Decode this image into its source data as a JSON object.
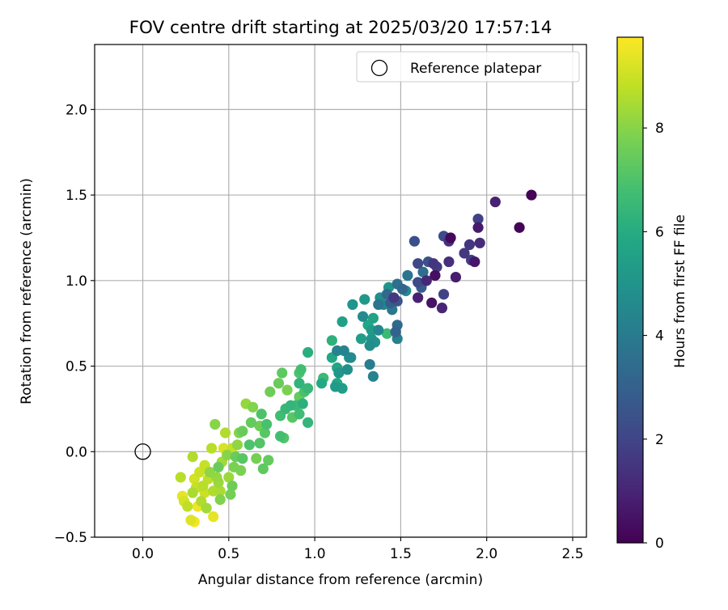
{
  "chart_data": {
    "type": "scatter",
    "title": "FOV centre drift starting at 2025/03/20 17:57:14",
    "xlabel": "Angular distance from reference (arcmin)",
    "ylabel": "Rotation from reference (arcmin)",
    "xlim": [
      -0.28,
      2.58
    ],
    "ylim": [
      -0.5,
      2.38
    ],
    "xticks": [
      0.0,
      0.5,
      1.0,
      1.5,
      2.0,
      2.5
    ],
    "xtick_labels": [
      "0.0",
      "0.5",
      "1.0",
      "1.5",
      "2.0",
      "2.5"
    ],
    "yticks": [
      -0.5,
      0.0,
      0.5,
      1.0,
      1.5,
      2.0
    ],
    "ytick_labels": [
      "−0.5",
      "0.0",
      "0.5",
      "1.0",
      "1.5",
      "2.0"
    ],
    "grid": true,
    "legend": {
      "placement": "top-right",
      "entries": [
        "Reference platepar"
      ]
    },
    "reference_point": {
      "x": 0.0,
      "y": 0.0,
      "label": "Reference platepar"
    },
    "colorbar": {
      "label": "Hours from first FF file",
      "colormap": "viridis",
      "range": [
        0,
        9.75
      ],
      "ticks": [
        0,
        2,
        4,
        6,
        8
      ],
      "tick_labels": [
        "0",
        "2",
        "4",
        "6",
        "8"
      ]
    },
    "series": [
      {
        "color_by": "hours",
        "points": [
          {
            "x": 2.26,
            "y": 1.5,
            "hours": 0.05
          },
          {
            "x": 2.19,
            "y": 1.31,
            "hours": 0.1
          },
          {
            "x": 2.05,
            "y": 1.46,
            "hours": 0.9
          },
          {
            "x": 1.95,
            "y": 1.36,
            "hours": 1.9
          },
          {
            "x": 1.95,
            "y": 1.31,
            "hours": 0.7
          },
          {
            "x": 1.96,
            "y": 1.22,
            "hours": 1.2
          },
          {
            "x": 1.9,
            "y": 1.21,
            "hours": 1.5
          },
          {
            "x": 1.91,
            "y": 1.12,
            "hours": 1.8
          },
          {
            "x": 1.93,
            "y": 1.11,
            "hours": 0.6
          },
          {
            "x": 1.87,
            "y": 1.16,
            "hours": 1.6
          },
          {
            "x": 1.82,
            "y": 1.02,
            "hours": 0.8
          },
          {
            "x": 1.79,
            "y": 1.25,
            "hours": 0.2
          },
          {
            "x": 1.75,
            "y": 1.26,
            "hours": 2.2
          },
          {
            "x": 1.78,
            "y": 1.23,
            "hours": 1.4
          },
          {
            "x": 1.78,
            "y": 1.11,
            "hours": 1.3
          },
          {
            "x": 1.75,
            "y": 0.92,
            "hours": 1.9
          },
          {
            "x": 1.74,
            "y": 0.84,
            "hours": 1.0
          },
          {
            "x": 1.71,
            "y": 1.08,
            "hours": 1.7
          },
          {
            "x": 1.7,
            "y": 1.03,
            "hours": 0.4
          },
          {
            "x": 1.69,
            "y": 1.1,
            "hours": 1.5
          },
          {
            "x": 1.68,
            "y": 0.87,
            "hours": 0.5
          },
          {
            "x": 1.66,
            "y": 1.11,
            "hours": 2.5
          },
          {
            "x": 1.65,
            "y": 1.0,
            "hours": 1.1
          },
          {
            "x": 1.63,
            "y": 1.05,
            "hours": 3.5
          },
          {
            "x": 1.62,
            "y": 0.96,
            "hours": 2.8
          },
          {
            "x": 1.6,
            "y": 0.99,
            "hours": 2.2
          },
          {
            "x": 1.6,
            "y": 0.9,
            "hours": 0.9
          },
          {
            "x": 1.6,
            "y": 1.1,
            "hours": 2.1
          },
          {
            "x": 1.58,
            "y": 1.23,
            "hours": 2.4
          },
          {
            "x": 1.54,
            "y": 1.03,
            "hours": 3.8
          },
          {
            "x": 1.53,
            "y": 0.94,
            "hours": 4.6
          },
          {
            "x": 1.51,
            "y": 0.95,
            "hours": 3.2
          },
          {
            "x": 1.48,
            "y": 0.98,
            "hours": 3.6
          },
          {
            "x": 1.48,
            "y": 0.88,
            "hours": 2.6
          },
          {
            "x": 1.48,
            "y": 0.74,
            "hours": 3.4
          },
          {
            "x": 1.48,
            "y": 0.66,
            "hours": 4.2
          },
          {
            "x": 1.47,
            "y": 0.7,
            "hours": 3.1
          },
          {
            "x": 1.46,
            "y": 0.9,
            "hours": 1.6
          },
          {
            "x": 1.45,
            "y": 0.83,
            "hours": 3.9
          },
          {
            "x": 1.44,
            "y": 0.87,
            "hours": 2.9
          },
          {
            "x": 1.43,
            "y": 0.96,
            "hours": 5.0
          },
          {
            "x": 1.42,
            "y": 0.69,
            "hours": 6.6
          },
          {
            "x": 1.42,
            "y": 0.92,
            "hours": 3.3
          },
          {
            "x": 1.4,
            "y": 0.86,
            "hours": 4.4
          },
          {
            "x": 1.38,
            "y": 0.9,
            "hours": 4.8
          },
          {
            "x": 1.37,
            "y": 0.86,
            "hours": 3.7
          },
          {
            "x": 1.37,
            "y": 0.71,
            "hours": 4.5
          },
          {
            "x": 1.35,
            "y": 0.64,
            "hours": 4.9
          },
          {
            "x": 1.34,
            "y": 0.44,
            "hours": 4.3
          },
          {
            "x": 1.34,
            "y": 0.78,
            "hours": 5.6
          },
          {
            "x": 1.33,
            "y": 0.71,
            "hours": 5.3
          },
          {
            "x": 1.33,
            "y": 0.66,
            "hours": 5.1
          },
          {
            "x": 1.32,
            "y": 0.62,
            "hours": 4.7
          },
          {
            "x": 1.32,
            "y": 0.51,
            "hours": 4.1
          },
          {
            "x": 1.31,
            "y": 0.74,
            "hours": 5.8
          },
          {
            "x": 1.29,
            "y": 0.89,
            "hours": 5.2
          },
          {
            "x": 1.28,
            "y": 0.79,
            "hours": 4.6
          },
          {
            "x": 1.27,
            "y": 0.66,
            "hours": 5.4
          },
          {
            "x": 1.22,
            "y": 0.86,
            "hours": 5.0
          },
          {
            "x": 1.21,
            "y": 0.55,
            "hours": 4.6
          },
          {
            "x": 1.2,
            "y": 0.55,
            "hours": 5.0
          },
          {
            "x": 1.19,
            "y": 0.48,
            "hours": 4.8
          },
          {
            "x": 1.17,
            "y": 0.59,
            "hours": 4.4
          },
          {
            "x": 1.16,
            "y": 0.76,
            "hours": 5.5
          },
          {
            "x": 1.16,
            "y": 0.37,
            "hours": 5.4
          },
          {
            "x": 1.14,
            "y": 0.46,
            "hours": 5.1
          },
          {
            "x": 1.13,
            "y": 0.49,
            "hours": 5.7
          },
          {
            "x": 1.13,
            "y": 0.59,
            "hours": 4.3
          },
          {
            "x": 1.13,
            "y": 0.4,
            "hours": 5.9
          },
          {
            "x": 1.12,
            "y": 0.38,
            "hours": 5.3
          },
          {
            "x": 1.1,
            "y": 0.65,
            "hours": 6.2
          },
          {
            "x": 1.1,
            "y": 0.55,
            "hours": 5.8
          },
          {
            "x": 1.05,
            "y": 0.43,
            "hours": 6.6
          },
          {
            "x": 1.04,
            "y": 0.4,
            "hours": 5.9
          },
          {
            "x": 0.96,
            "y": 0.58,
            "hours": 6.1
          },
          {
            "x": 0.96,
            "y": 0.37,
            "hours": 6.5
          },
          {
            "x": 0.96,
            "y": 0.17,
            "hours": 6.4
          },
          {
            "x": 0.94,
            "y": 0.35,
            "hours": 6.9
          },
          {
            "x": 0.93,
            "y": 0.28,
            "hours": 6.2
          },
          {
            "x": 0.92,
            "y": 0.48,
            "hours": 6.8
          },
          {
            "x": 0.91,
            "y": 0.46,
            "hours": 7.0
          },
          {
            "x": 0.91,
            "y": 0.4,
            "hours": 6.3
          },
          {
            "x": 0.91,
            "y": 0.32,
            "hours": 7.4
          },
          {
            "x": 0.91,
            "y": 0.22,
            "hours": 6.7
          },
          {
            "x": 0.89,
            "y": 0.27,
            "hours": 6.6
          },
          {
            "x": 0.87,
            "y": 0.2,
            "hours": 7.2
          },
          {
            "x": 0.86,
            "y": 0.27,
            "hours": 6.4
          },
          {
            "x": 0.84,
            "y": 0.36,
            "hours": 7.8
          },
          {
            "x": 0.83,
            "y": 0.25,
            "hours": 6.5
          },
          {
            "x": 0.82,
            "y": 0.08,
            "hours": 7.1
          },
          {
            "x": 0.81,
            "y": 0.46,
            "hours": 7.3
          },
          {
            "x": 0.8,
            "y": 0.21,
            "hours": 6.7
          },
          {
            "x": 0.8,
            "y": 0.09,
            "hours": 6.8
          },
          {
            "x": 0.79,
            "y": 0.4,
            "hours": 7.5
          },
          {
            "x": 0.74,
            "y": 0.35,
            "hours": 7.6
          },
          {
            "x": 0.73,
            "y": -0.05,
            "hours": 7.4
          },
          {
            "x": 0.72,
            "y": 0.16,
            "hours": 6.9
          },
          {
            "x": 0.71,
            "y": 0.11,
            "hours": 7.2
          },
          {
            "x": 0.7,
            "y": -0.1,
            "hours": 7.3
          },
          {
            "x": 0.69,
            "y": 0.22,
            "hours": 7.0
          },
          {
            "x": 0.68,
            "y": 0.15,
            "hours": 7.6
          },
          {
            "x": 0.68,
            "y": 0.05,
            "hours": 7.1
          },
          {
            "x": 0.66,
            "y": -0.04,
            "hours": 7.7
          },
          {
            "x": 0.64,
            "y": 0.26,
            "hours": 7.9
          },
          {
            "x": 0.63,
            "y": 0.17,
            "hours": 7.4
          },
          {
            "x": 0.62,
            "y": 0.04,
            "hours": 7.0
          },
          {
            "x": 0.6,
            "y": 0.28,
            "hours": 8.2
          },
          {
            "x": 0.58,
            "y": 0.12,
            "hours": 7.5
          },
          {
            "x": 0.58,
            "y": -0.04,
            "hours": 7.2
          },
          {
            "x": 0.57,
            "y": -0.11,
            "hours": 7.8
          },
          {
            "x": 0.56,
            "y": 0.11,
            "hours": 7.9
          },
          {
            "x": 0.55,
            "y": 0.04,
            "hours": 8.1
          },
          {
            "x": 0.54,
            "y": -0.03,
            "hours": 7.5
          },
          {
            "x": 0.53,
            "y": -0.09,
            "hours": 7.8
          },
          {
            "x": 0.52,
            "y": -0.2,
            "hours": 7.6
          },
          {
            "x": 0.51,
            "y": -0.25,
            "hours": 7.7
          },
          {
            "x": 0.5,
            "y": -0.15,
            "hours": 8.3
          },
          {
            "x": 0.49,
            "y": -0.02,
            "hours": 8.0
          },
          {
            "x": 0.48,
            "y": 0.11,
            "hours": 8.6
          },
          {
            "x": 0.47,
            "y": 0.02,
            "hours": 9.2
          },
          {
            "x": 0.46,
            "y": -0.06,
            "hours": 8.4
          },
          {
            "x": 0.45,
            "y": -0.23,
            "hours": 8.5
          },
          {
            "x": 0.45,
            "y": -0.28,
            "hours": 7.9
          },
          {
            "x": 0.44,
            "y": -0.09,
            "hours": 7.5
          },
          {
            "x": 0.44,
            "y": -0.18,
            "hours": 8.3
          },
          {
            "x": 0.43,
            "y": -0.15,
            "hours": 8.2
          },
          {
            "x": 0.42,
            "y": 0.16,
            "hours": 8.0
          },
          {
            "x": 0.41,
            "y": -0.23,
            "hours": 8.6
          },
          {
            "x": 0.41,
            "y": -0.38,
            "hours": 9.4
          },
          {
            "x": 0.4,
            "y": 0.02,
            "hours": 8.7
          },
          {
            "x": 0.39,
            "y": -0.12,
            "hours": 8.1
          },
          {
            "x": 0.38,
            "y": -0.16,
            "hours": 8.8
          },
          {
            "x": 0.37,
            "y": -0.33,
            "hours": 8.4
          },
          {
            "x": 0.36,
            "y": -0.08,
            "hours": 8.9
          },
          {
            "x": 0.35,
            "y": -0.2,
            "hours": 8.7
          },
          {
            "x": 0.34,
            "y": -0.29,
            "hours": 8.6
          },
          {
            "x": 0.33,
            "y": -0.12,
            "hours": 9.0
          },
          {
            "x": 0.32,
            "y": -0.32,
            "hours": 9.5
          },
          {
            "x": 0.31,
            "y": -0.21,
            "hours": 8.9
          },
          {
            "x": 0.3,
            "y": -0.41,
            "hours": 9.6
          },
          {
            "x": 0.3,
            "y": -0.16,
            "hours": 9.1
          },
          {
            "x": 0.29,
            "y": -0.03,
            "hours": 8.6
          },
          {
            "x": 0.29,
            "y": -0.24,
            "hours": 8.5
          },
          {
            "x": 0.28,
            "y": -0.4,
            "hours": 9.3
          },
          {
            "x": 0.26,
            "y": -0.32,
            "hours": 8.8
          },
          {
            "x": 0.24,
            "y": -0.29,
            "hours": 9.1
          },
          {
            "x": 0.23,
            "y": -0.26,
            "hours": 9.4
          },
          {
            "x": 0.22,
            "y": -0.15,
            "hours": 8.7
          },
          {
            "x": 0.52,
            "y": 0.02,
            "hours": 8.9
          },
          {
            "x": 0.36,
            "y": -0.24,
            "hours": 9.0
          }
        ]
      }
    ]
  }
}
